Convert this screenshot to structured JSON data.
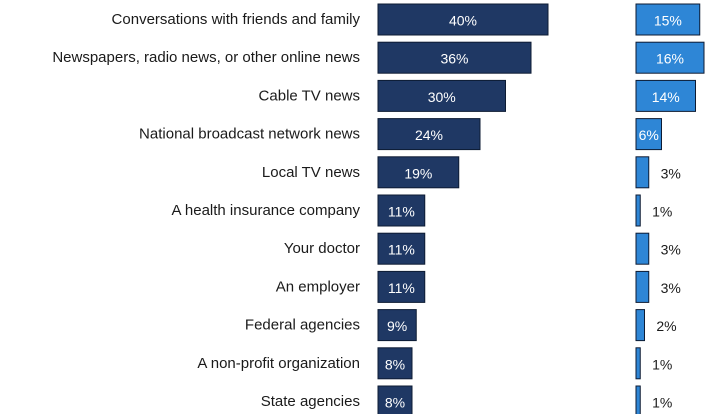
{
  "chart_data": {
    "type": "bar",
    "orientation": "horizontal",
    "title": "",
    "xlabel": "",
    "ylabel": "",
    "categories": [
      "Conversations with friends and family",
      "Newspapers, radio news, or other online news",
      "Cable TV news",
      "National broadcast network news",
      "Local TV news",
      "A health insurance company",
      "Your doctor",
      "An employer",
      "Federal agencies",
      "A non-profit organization",
      "State agencies"
    ],
    "series": [
      {
        "values": [
          40,
          36,
          30,
          24,
          19,
          11,
          11,
          11,
          9,
          8,
          8
        ],
        "labels": [
          "40%",
          "36%",
          "30%",
          "24%",
          "19%",
          "11%",
          "11%",
          "11%",
          "9%",
          "8%",
          "8%"
        ],
        "color": "#1f3864"
      },
      {
        "values": [
          15,
          16,
          14,
          6,
          3,
          1,
          3,
          3,
          2,
          1,
          1
        ],
        "labels": [
          "15%",
          "16%",
          "14%",
          "6%",
          "3%",
          "1%",
          "3%",
          "3%",
          "2%",
          "1%",
          "1%"
        ],
        "color": "#2e86d6"
      }
    ],
    "grid": false,
    "legend": "none"
  }
}
